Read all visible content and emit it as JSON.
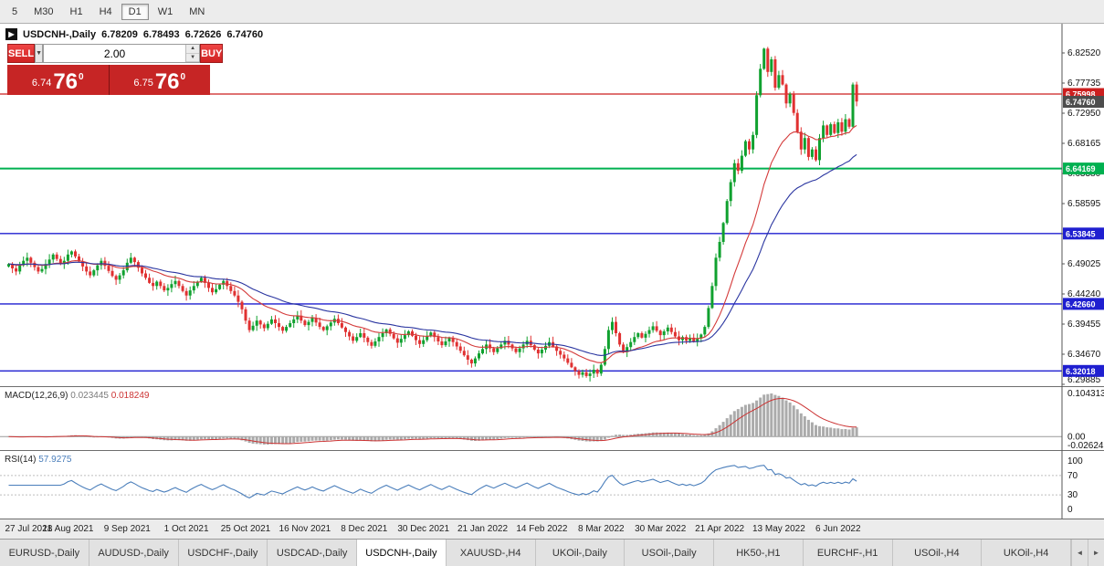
{
  "toolbar": {
    "timeframes": [
      "5",
      "M30",
      "H1",
      "H4",
      "D1",
      "W1",
      "MN"
    ],
    "selected": "D1"
  },
  "chart_header": {
    "collapse_icon": "▶",
    "title": "USDCNH-,Daily",
    "open": "6.78209",
    "high": "6.78493",
    "low": "6.72626",
    "close": "6.74760"
  },
  "trade_panel": {
    "sell_label": "SELL",
    "buy_label": "BUY",
    "volume": "2.00",
    "dropdown_icon": "▼",
    "spin_up_icon": "▲",
    "spin_down_icon": "▼",
    "sell_price": {
      "prefix": "6.74",
      "big": "76",
      "sup": "0"
    },
    "buy_price": {
      "prefix": "6.75",
      "big": "76",
      "sup": "0"
    }
  },
  "chart_data": {
    "type": "candlestick",
    "symbol": "USDCNH",
    "timeframe": "Daily",
    "last_ohlc": {
      "open": 6.78209,
      "high": 6.78493,
      "low": 6.72626,
      "close": 6.7476
    },
    "y_axis_labels": [
      "6.82520",
      "6.77735",
      "6.72950",
      "6.68165",
      "6.63380",
      "6.58595",
      "6.53810",
      "6.49025",
      "6.44240",
      "6.39455",
      "6.34670",
      "6.29885"
    ],
    "price_lines": [
      {
        "label": "6.75998",
        "price": 6.75998,
        "color": "#cc1f1f",
        "width": 1.3,
        "draw_line": true
      },
      {
        "label": "6.74760",
        "price": 6.7476,
        "color": "#4d4d4d",
        "width": 1,
        "draw_line": false
      },
      {
        "label": "6.64169",
        "price": 6.64169,
        "color": "#00b050",
        "width": 2,
        "draw_line": true
      },
      {
        "label": "6.53845",
        "price": 6.53845,
        "color": "#1f1fd0",
        "width": 1.4,
        "draw_line": true
      },
      {
        "label": "6.42660",
        "price": 6.4266,
        "color": "#1f1fd0",
        "width": 1.4,
        "draw_line": true
      },
      {
        "label": "6.32018",
        "price": 6.32018,
        "color": "#1f1fd0",
        "width": 1.4,
        "draw_line": true
      }
    ],
    "x_labels": [
      {
        "index": 0,
        "label": "27 Jul 2021"
      },
      {
        "index": 16,
        "label": "18 Aug 2021"
      },
      {
        "index": 32,
        "label": "9 Sep 2021"
      },
      {
        "index": 48,
        "label": "1 Oct 2021"
      },
      {
        "index": 64,
        "label": "25 Oct 2021"
      },
      {
        "index": 80,
        "label": "16 Nov 2021"
      },
      {
        "index": 96,
        "label": "8 Dec 2021"
      },
      {
        "index": 112,
        "label": "30 Dec 2021"
      },
      {
        "index": 128,
        "label": "21 Jan 2022"
      },
      {
        "index": 144,
        "label": "14 Feb 2022"
      },
      {
        "index": 160,
        "label": "8 Mar 2022"
      },
      {
        "index": 176,
        "label": "30 Mar 2022"
      },
      {
        "index": 192,
        "label": "21 Apr 2022"
      },
      {
        "index": 208,
        "label": "13 May 2022"
      },
      {
        "index": 224,
        "label": "6 Jun 2022"
      }
    ],
    "closes": [
      6.49,
      6.483,
      6.478,
      6.488,
      6.495,
      6.5,
      6.492,
      6.485,
      6.478,
      6.482,
      6.49,
      6.497,
      6.505,
      6.498,
      6.49,
      6.495,
      6.505,
      6.51,
      6.502,
      6.494,
      6.486,
      6.478,
      6.472,
      6.48,
      6.488,
      6.495,
      6.487,
      6.479,
      6.471,
      6.465,
      6.472,
      6.48,
      6.492,
      6.5,
      6.493,
      6.484,
      6.475,
      6.468,
      6.46,
      6.455,
      6.462,
      6.455,
      6.448,
      6.452,
      6.458,
      6.463,
      6.455,
      6.447,
      6.44,
      6.448,
      6.455,
      6.462,
      6.468,
      6.46,
      6.452,
      6.445,
      6.45,
      6.457,
      6.463,
      6.455,
      6.447,
      6.44,
      6.43,
      6.418,
      6.4,
      6.385,
      6.392,
      6.4,
      6.394,
      6.388,
      6.395,
      6.402,
      6.396,
      6.39,
      6.384,
      6.39,
      6.396,
      6.402,
      6.408,
      6.4,
      6.393,
      6.398,
      6.404,
      6.397,
      6.39,
      6.385,
      6.391,
      6.397,
      6.403,
      6.396,
      6.389,
      6.382,
      6.375,
      6.368,
      6.374,
      6.38,
      6.373,
      6.366,
      6.36,
      6.367,
      6.374,
      6.38,
      6.386,
      6.379,
      6.372,
      6.365,
      6.371,
      6.377,
      6.383,
      6.376,
      6.369,
      6.363,
      6.369,
      6.375,
      6.381,
      6.374,
      6.367,
      6.361,
      6.367,
      6.373,
      6.366,
      6.359,
      6.352,
      6.345,
      6.338,
      6.332,
      6.34,
      6.348,
      6.355,
      6.362,
      6.356,
      6.35,
      6.356,
      6.362,
      6.368,
      6.362,
      6.356,
      6.35,
      6.356,
      6.362,
      6.368,
      6.361,
      6.354,
      6.348,
      6.354,
      6.36,
      6.366,
      6.359,
      6.352,
      6.346,
      6.34,
      6.333,
      6.326,
      6.32,
      6.314,
      6.318,
      6.312,
      6.316,
      6.322,
      6.316,
      6.33,
      6.355,
      6.385,
      6.398,
      6.38,
      6.362,
      6.35,
      6.358,
      6.366,
      6.374,
      6.38,
      6.373,
      6.379,
      6.385,
      6.391,
      6.384,
      6.377,
      6.383,
      6.389,
      6.382,
      6.375,
      6.369,
      6.374,
      6.368,
      6.373,
      6.367,
      6.372,
      6.378,
      6.39,
      6.42,
      6.455,
      6.5,
      6.525,
      6.555,
      6.59,
      6.62,
      6.65,
      6.638,
      6.662,
      6.685,
      6.672,
      6.695,
      6.758,
      6.8,
      6.832,
      6.795,
      6.815,
      6.77,
      6.79,
      6.775,
      6.745,
      6.76,
      6.73,
      6.7,
      6.672,
      6.69,
      6.66,
      6.672,
      6.655,
      6.69,
      6.71,
      6.695,
      6.712,
      6.698,
      6.715,
      6.7,
      6.72,
      6.708,
      6.775,
      6.748
    ],
    "colors": {
      "up": "#10a12f",
      "down": "#e03131",
      "ma_fast": "#d43a3a",
      "ma_slow": "#2a35a0",
      "macd_hist": "#ababab",
      "macd_signal": "#cc3333",
      "rsi_line": "#4a7ebb"
    },
    "indicators": {
      "macd": {
        "name": "MACD(12,26,9)",
        "value1": "0.023445",
        "value2": "0.018249",
        "axis_labels": [
          "0.104313",
          "0.00",
          "-0.026249"
        ],
        "fast": 12,
        "slow": 26,
        "signal": 9
      },
      "rsi": {
        "name": "RSI(14)",
        "value": "57.9275",
        "axis_labels": [
          "100",
          "70",
          "30",
          "0"
        ],
        "levels": [
          70,
          30
        ],
        "period": 14
      }
    }
  },
  "tabbar": {
    "tabs": [
      "EURUSD-,Daily",
      "AUDUSD-,Daily",
      "USDCHF-,Daily",
      "USDCAD-,Daily",
      "USDCNH-,Daily",
      "XAUUSD-,H4",
      "UKOil-,Daily",
      "USOil-,Daily",
      "HK50-,H1",
      "EURCHF-,H1",
      "USOil-,H4",
      "UKOil-,H4"
    ],
    "active": "USDCNH-,Daily",
    "scroll_left": "◄",
    "scroll_right": "►"
  }
}
